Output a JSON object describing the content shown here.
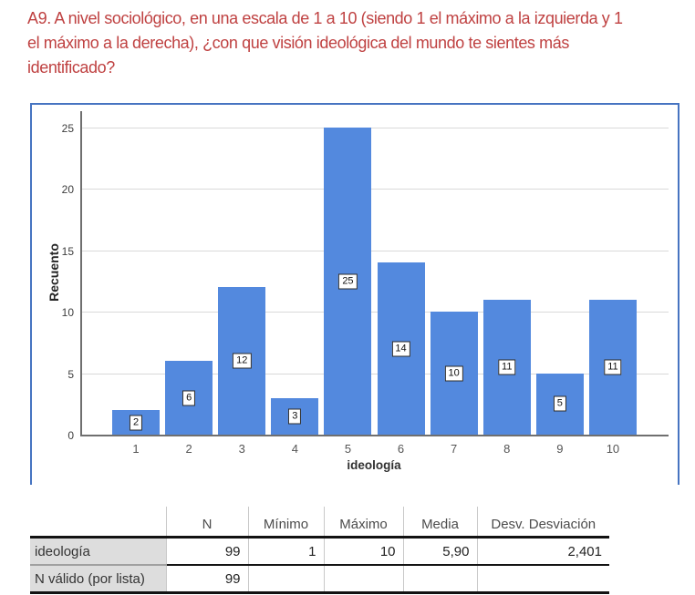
{
  "title": {
    "lines": [
      "A9. A nivel sociológico, en una escala de 1 a 10 (siendo 1 el máximo a la izquierda y 1",
      "el máximo a la derecha), ¿con que visión ideológica del mundo te sientes más",
      "identificado?"
    ],
    "color": "#bf4141"
  },
  "chart_data": {
    "type": "bar",
    "categories": [
      "1",
      "2",
      "3",
      "4",
      "5",
      "6",
      "7",
      "8",
      "9",
      "10"
    ],
    "values": [
      2,
      6,
      12,
      3,
      25,
      14,
      10,
      11,
      5,
      11
    ],
    "bar_labels": [
      "2",
      "6",
      "12",
      "3",
      "25",
      "14",
      "10",
      "11",
      "5",
      "11"
    ],
    "title": "",
    "xlabel": "ideología",
    "ylabel": "Recuento",
    "ylim": [
      0,
      25
    ],
    "yticks": [
      0,
      5,
      10,
      15,
      20,
      25
    ],
    "grid": true,
    "legend_position": "none",
    "bar_color": "#5389de",
    "frame_color": "#4674c1",
    "grid_color": "#d9d9d9",
    "axis_color": "#6f6f6f",
    "bar_label_style": "boxed-white"
  },
  "table": {
    "headers": [
      "",
      "N",
      "Mínimo",
      "Máximo",
      "Media",
      "Desv. Desviación"
    ],
    "rows": [
      {
        "label": "ideología",
        "values": [
          "99",
          "1",
          "10",
          "5,90",
          "2,401"
        ]
      },
      {
        "label": "N válido (por lista)",
        "values": [
          "99",
          "",
          "",
          "",
          ""
        ]
      }
    ]
  }
}
